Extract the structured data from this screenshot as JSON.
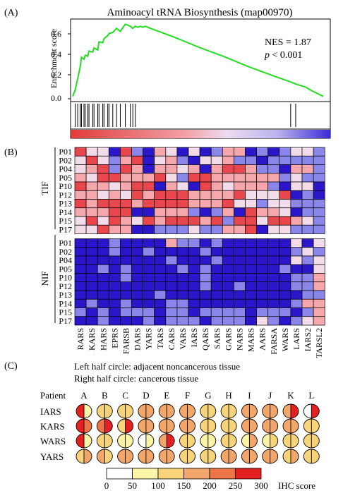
{
  "panelA": {
    "label": "(A)",
    "title": "Aminoacyl tRNA Biosynthesis (map00970)",
    "ylabel": "Enrichment score",
    "yticks": [
      "0.6",
      "0.4",
      "0.2",
      "0.0"
    ],
    "nes": "NES = 1.87",
    "p_italic": "p",
    "p_rest": " < 0.001",
    "colors": {
      "curve": "#22dd22",
      "bar_red": "#e23b3b",
      "bar_blue": "#3a2bd6"
    }
  },
  "chart_data": {
    "type": "line",
    "title": "Aminoacyl tRNA Biosynthesis (map00970)",
    "ylabel": "Enrichment score",
    "ylim": [
      -0.05,
      0.75
    ],
    "x_range": [
      0,
      1
    ],
    "x": [
      0,
      0.01,
      0.015,
      0.02,
      0.03,
      0.035,
      0.045,
      0.05,
      0.06,
      0.065,
      0.08,
      0.085,
      0.1,
      0.105,
      0.12,
      0.125,
      0.14,
      0.145,
      0.16,
      0.175,
      0.19,
      0.21,
      0.23,
      0.24,
      0.25,
      0.26,
      0.27,
      0.28,
      0.29,
      0.3,
      0.31,
      0.4,
      0.5,
      0.6,
      0.7,
      0.8,
      0.87,
      0.89,
      0.93,
      0.95,
      1.0
    ],
    "y": [
      0.0,
      0.06,
      0.12,
      0.17,
      0.29,
      0.38,
      0.36,
      0.4,
      0.39,
      0.44,
      0.43,
      0.47,
      0.45,
      0.53,
      0.52,
      0.56,
      0.59,
      0.61,
      0.62,
      0.66,
      0.63,
      0.7,
      0.68,
      0.66,
      0.68,
      0.67,
      0.68,
      0.67,
      0.68,
      0.67,
      0.66,
      0.58,
      0.48,
      0.39,
      0.29,
      0.2,
      0.14,
      0.12,
      0.09,
      0.06,
      0.0
    ],
    "hits": [
      0.01,
      0.02,
      0.03,
      0.035,
      0.045,
      0.05,
      0.06,
      0.065,
      0.08,
      0.085,
      0.1,
      0.105,
      0.12,
      0.125,
      0.14,
      0.145,
      0.16,
      0.175,
      0.19,
      0.21,
      0.23,
      0.24,
      0.25,
      0.87,
      0.89
    ]
  },
  "panelB": {
    "label": "(B)",
    "group_tif": "TIF",
    "group_nif": "NIF",
    "patients": [
      "P01",
      "P02",
      "P04",
      "P05",
      "P10",
      "P12",
      "P13",
      "P14",
      "P15",
      "P17"
    ],
    "genes": [
      "RARS",
      "KARS",
      "HARS",
      "EPRS",
      "FARSB",
      "DARS",
      "YARS",
      "TARS",
      "CARS",
      "VARS",
      "IARS",
      "QARS",
      "SARS",
      "GARS",
      "NARS",
      "MARS",
      "AARS",
      "FARSA",
      "WARS",
      "LARS",
      "IARS2",
      "TARSL2"
    ],
    "tif_matrix": [
      "4220410320201330101221",
      "2421340231022311011111",
      "2341430332303443110331",
      "3244333421443333331211",
      "4332344032043233310220",
      "3323243444333342224010",
      "4344434444333422122111",
      "3334400333101304332011",
      "2424324344434144244321",
      "2243300111211334022111"
    ],
    "nif_matrix": [
      "0001000031101000000202",
      "0001001000010000000121",
      "0000000010001000000212",
      "0010100001010000001002",
      "0000100000010000000113",
      "0000000000010010000113",
      "0000000100000000000011",
      "0100100011000000000133",
      "1010111011011110111013",
      "0010001011101110210123"
    ]
  },
  "panelC": {
    "label": "(C)",
    "legend1": "Left half circle: adjacent noncancerous tissue",
    "legend2": "Right half circle: cancerous tissue",
    "patient_header": "Patient",
    "patients": [
      "A",
      "B",
      "C",
      "D",
      "E",
      "F",
      "G",
      "H",
      "I",
      "J",
      "K",
      "L"
    ],
    "rows": [
      {
        "name": "IARS",
        "left": [
          5,
          2,
          2,
          3,
          3,
          3,
          2,
          2,
          3,
          3,
          3,
          0
        ],
        "right": [
          1,
          2,
          2,
          3,
          3,
          3,
          2,
          2,
          3,
          3,
          5,
          5
        ]
      },
      {
        "name": "KARS",
        "left": [
          5,
          4,
          2,
          3,
          3,
          3,
          2,
          2,
          3,
          3,
          3,
          2
        ],
        "right": [
          4,
          5,
          5,
          3,
          3,
          3,
          2,
          2,
          3,
          3,
          3,
          2
        ]
      },
      {
        "name": "WARS",
        "left": [
          5,
          2,
          1,
          0,
          3,
          2,
          1,
          2,
          1,
          1,
          2,
          2
        ],
        "right": [
          1,
          2,
          1,
          1,
          5,
          2,
          1,
          2,
          3,
          2,
          2,
          2
        ]
      },
      {
        "name": "YARS",
        "left": [
          2,
          3,
          3,
          3,
          3,
          2,
          2,
          3,
          3,
          3,
          2,
          2
        ],
        "right": [
          3,
          2,
          3,
          3,
          3,
          2,
          2,
          3,
          3,
          3,
          3,
          2
        ]
      }
    ],
    "scale_ticks": [
      "0",
      "50",
      "100",
      "150",
      "200",
      "250",
      "300"
    ],
    "scale_label": "IHC score",
    "scale_colors": [
      "#ffffff",
      "#fbf3a6",
      "#f7d47a",
      "#f2a66a",
      "#ec7448",
      "#e42020"
    ]
  }
}
